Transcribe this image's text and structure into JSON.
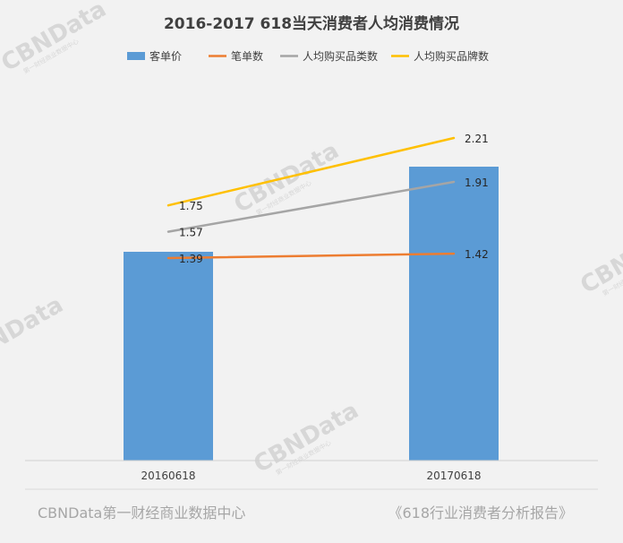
{
  "chart_data": {
    "type": "bar",
    "title": "2016-2017 618当天消费者人均消费情况",
    "categories": [
      "20160618",
      "20170618"
    ],
    "series": [
      {
        "name": "客单价",
        "kind": "bar",
        "color": "#5b9bd5",
        "values": [
          null,
          null
        ]
      },
      {
        "name": "笔单数",
        "kind": "line",
        "color": "#ed7d31",
        "values": [
          1.39,
          1.42
        ]
      },
      {
        "name": "人均购买品类数",
        "kind": "line",
        "color": "#a5a5a5",
        "values": [
          1.57,
          1.91
        ]
      },
      {
        "name": "人均购买品牌数",
        "kind": "line",
        "color": "#ffc000",
        "values": [
          1.75,
          2.21
        ]
      }
    ],
    "legend_position": "top",
    "grid": false
  },
  "footer": {
    "left": "CBNData第一财经商业数据中心",
    "right": "《618行业消费者分析报告》"
  },
  "watermark": {
    "brand": "CBNData",
    "sub": "第一财经商业数据中心"
  }
}
